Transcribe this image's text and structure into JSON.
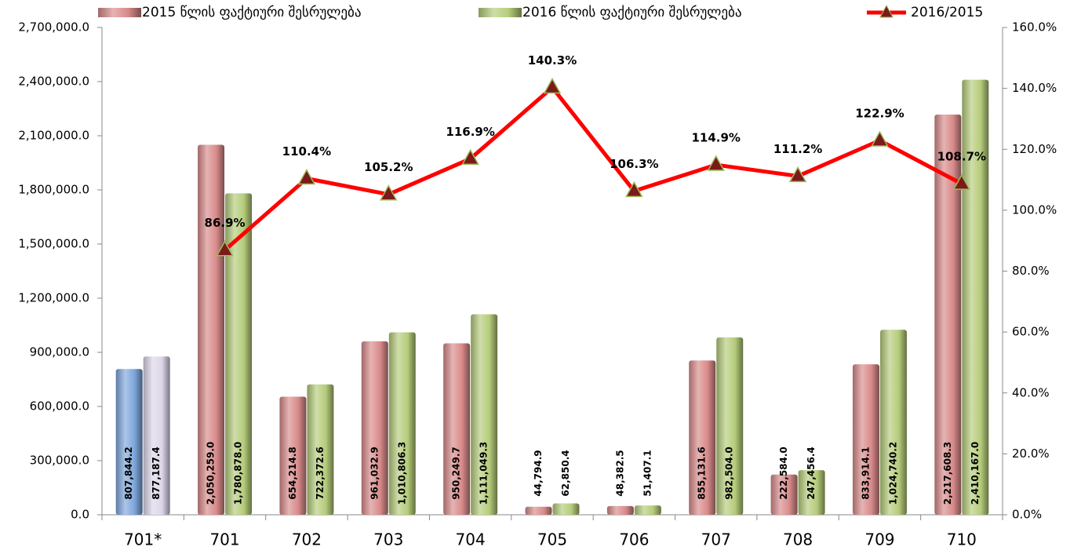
{
  "chart_data": {
    "type": "bar",
    "categories": [
      "701*",
      "701",
      "702",
      "703",
      "704",
      "705",
      "706",
      "707",
      "708",
      "709",
      "710"
    ],
    "series": [
      {
        "name": "2015 წლის ფაქტიური შესრულება",
        "color": "#d98a8a",
        "colors": [
          "#7ea6dc",
          "#d98a8a",
          "#d98a8a",
          "#d98a8a",
          "#d98a8a",
          "#d98a8a",
          "#d98a8a",
          "#d98a8a",
          "#d98a8a",
          "#d98a8a",
          "#d98a8a"
        ],
        "values": [
          807844.2,
          2050259.0,
          654214.8,
          961032.9,
          950249.7,
          44794.9,
          48382.5,
          855131.6,
          222584.0,
          833914.1,
          2217608.3
        ],
        "value_labels": [
          "807,844.2",
          "2,050,259.0",
          "654,214.8",
          "961,032.9",
          "950,249.7",
          "44,794.9",
          "48,382.5",
          "855,131.6",
          "222,584.0",
          "833,914.1",
          "2,217,608.3"
        ]
      },
      {
        "name": "2016 წლის ფაქტიური შესრულება",
        "color": "#b5cc7a",
        "colors": [
          "#ddd6ea",
          "#b5cc7a",
          "#b5cc7a",
          "#b5cc7a",
          "#b5cc7a",
          "#b5cc7a",
          "#b5cc7a",
          "#b5cc7a",
          "#b5cc7a",
          "#b5cc7a",
          "#b5cc7a"
        ],
        "values": [
          877187.4,
          1780878.0,
          722372.6,
          1010806.3,
          1111049.3,
          62850.4,
          51407.1,
          982504.0,
          247456.4,
          1024740.2,
          2410167.0
        ],
        "value_labels": [
          "877,187.4",
          "1,780,878.0",
          "722,372.6",
          "1,010,806.3",
          "1,111,049.3",
          "62,850.4",
          "51,407.1",
          "982,504.0",
          "247,456.4",
          "1,024,740.2",
          "2,410,167.0"
        ]
      },
      {
        "name": "2016/2015",
        "type": "line",
        "axis": "y2",
        "color": "#ff0000",
        "marker_color": "#7a1a1a",
        "values": [
          null,
          86.9,
          110.4,
          105.2,
          116.9,
          140.3,
          106.3,
          114.9,
          111.2,
          122.9,
          108.7
        ],
        "value_labels": [
          null,
          "86.9%",
          "110.4%",
          "105.2%",
          "116.9%",
          "140.3%",
          "106.3%",
          "114.9%",
          "111.2%",
          "122.9%",
          "108.7%"
        ]
      }
    ],
    "ylim": [
      0,
      2700000
    ],
    "yticks": [
      {
        "value": 0,
        "label": "0.0"
      },
      {
        "value": 300000,
        "label": "300,000.0"
      },
      {
        "value": 600000,
        "label": "600,000.0"
      },
      {
        "value": 900000,
        "label": "900,000.0"
      },
      {
        "value": 1200000,
        "label": "1,200,000.0"
      },
      {
        "value": 1500000,
        "label": "1,500,000.0"
      },
      {
        "value": 1800000,
        "label": "1,800,000.0"
      },
      {
        "value": 2100000,
        "label": "2,100,000.0"
      },
      {
        "value": 2400000,
        "label": "2,400,000.0"
      },
      {
        "value": 2700000,
        "label": "2,700,000.0"
      }
    ],
    "y2lim": [
      0,
      160
    ],
    "y2ticks": [
      {
        "value": 0,
        "label": "0.0%"
      },
      {
        "value": 20,
        "label": "20.0%"
      },
      {
        "value": 40,
        "label": "40.0%"
      },
      {
        "value": 60,
        "label": "60.0%"
      },
      {
        "value": 80,
        "label": "80.0%"
      },
      {
        "value": 100,
        "label": "100.0%"
      },
      {
        "value": 120,
        "label": "120.0%"
      },
      {
        "value": 140,
        "label": "140.0%"
      },
      {
        "value": 160,
        "label": "160.0%"
      }
    ],
    "legend": "top",
    "grid": false
  }
}
